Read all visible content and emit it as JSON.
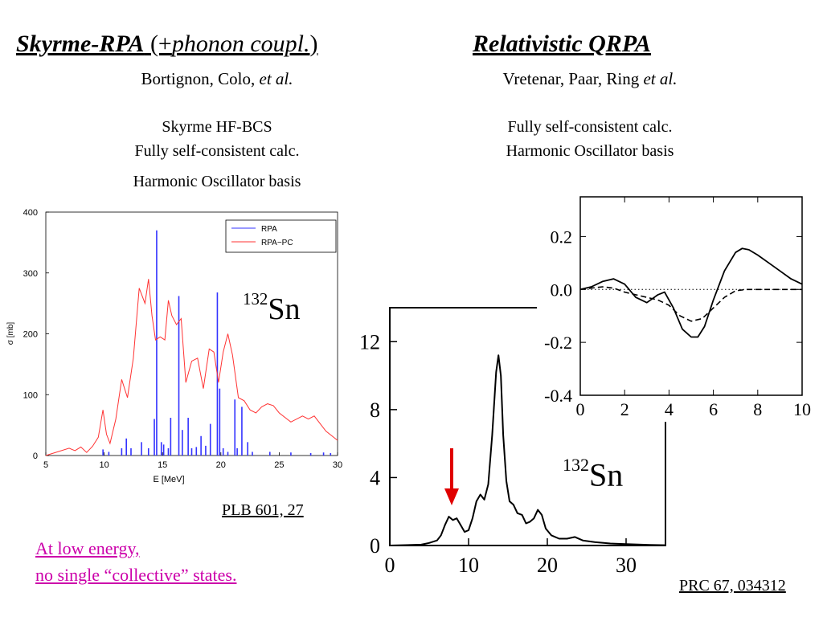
{
  "left": {
    "title_bold": "Skyrme-RPA",
    "title_paren_open": " (+",
    "title_italic": "phonon coupl.",
    "title_paren_close": ") ",
    "authors": "Bortignon, Colo, ",
    "authors_etal": "et al.",
    "desc": [
      "Skyrme HF-BCS",
      "Fully self-consistent calc.",
      "Harmonic Oscillator basis"
    ],
    "nucleus_mass": "132",
    "nucleus_symbol": "Sn",
    "reference": "PLB 601, 27 "
  },
  "right": {
    "title": "Relativistic QRPA",
    "authors": "Vretenar, Paar, Ring ",
    "authors_etal": "et al.",
    "desc": [
      "Fully self-consistent calc.",
      "Harmonic Oscillator basis"
    ],
    "nucleus_mass": "132",
    "nucleus_symbol": "Sn",
    "reference": "PRC 67, 034312"
  },
  "note": [
    "At low energy, ",
    "no single “collective” states."
  ],
  "colors": {
    "rpa": "#3333ff",
    "rpa_pc": "#ff3333",
    "note": "#cc00aa",
    "arrow": "#e00000"
  },
  "chart_data": [
    {
      "type": "line",
      "xlabel": "E [MeV]",
      "ylabel": "σ [mb]",
      "xlim": [
        5,
        30
      ],
      "ylim": [
        0,
        400
      ],
      "xticks": [
        5,
        10,
        15,
        20,
        25,
        30
      ],
      "yticks": [
        0,
        100,
        200,
        300,
        400
      ],
      "legend_position": "top-right",
      "series": [
        {
          "name": "RPA",
          "style": "sticks",
          "x": [
            9.9,
            10.4,
            11.5,
            11.9,
            12.3,
            13.2,
            13.8,
            14.3,
            14.5,
            14.9,
            15.1,
            15.5,
            15.7,
            16.4,
            16.7,
            17.2,
            17.5,
            17.9,
            18.3,
            18.7,
            19.1,
            19.7,
            19.9,
            20.2,
            20.6,
            21.2,
            21.4,
            21.8,
            22.3,
            22.7,
            24.2,
            26.0,
            27.7,
            28.8,
            29.4
          ],
          "y": [
            10,
            6,
            12,
            28,
            12,
            22,
            12,
            60,
            370,
            22,
            18,
            12,
            62,
            262,
            42,
            62,
            12,
            14,
            32,
            16,
            52,
            268,
            110,
            12,
            6,
            92,
            12,
            80,
            22,
            6,
            6,
            5,
            4,
            5,
            4
          ]
        },
        {
          "name": "RPA−PC",
          "style": "line",
          "x": [
            5,
            7,
            7.5,
            8,
            8.5,
            9,
            9.5,
            9.9,
            10.2,
            10.5,
            11,
            11.5,
            12,
            12.5,
            13,
            13.5,
            13.8,
            14.1,
            14.4,
            14.8,
            15.2,
            15.5,
            15.8,
            16.2,
            16.6,
            17,
            17.5,
            18,
            18.5,
            19,
            19.4,
            19.8,
            20.2,
            20.6,
            21,
            21.5,
            22,
            22.5,
            23,
            23.5,
            24,
            24.5,
            25,
            26,
            27,
            27.5,
            28,
            29,
            30
          ],
          "y": [
            0,
            12,
            8,
            14,
            5,
            15,
            30,
            75,
            35,
            20,
            60,
            125,
            95,
            160,
            275,
            250,
            290,
            230,
            190,
            195,
            190,
            255,
            230,
            215,
            225,
            120,
            155,
            160,
            110,
            175,
            170,
            120,
            170,
            200,
            165,
            95,
            90,
            75,
            70,
            80,
            85,
            82,
            70,
            55,
            65,
            60,
            65,
            40,
            25
          ]
        }
      ]
    },
    {
      "type": "line",
      "xlim": [
        0,
        35
      ],
      "ylim": [
        0,
        14
      ],
      "xticks": [
        0,
        10,
        20,
        30
      ],
      "yticks": [
        0,
        4,
        8,
        12
      ],
      "annotation": "red arrow at ~8 MeV pygmy peak",
      "series": [
        {
          "x": [
            0,
            4,
            5,
            6,
            6.5,
            7,
            7.5,
            8,
            8.5,
            9,
            9.5,
            10,
            10.5,
            11,
            11.5,
            12,
            12.5,
            13,
            13.5,
            13.8,
            14.1,
            14.4,
            14.8,
            15.2,
            15.7,
            16.2,
            16.8,
            17.3,
            17.8,
            18.3,
            18.8,
            19.3,
            19.8,
            20.5,
            21.5,
            22.5,
            23.5,
            24.5,
            26,
            28,
            30,
            33,
            35
          ],
          "y": [
            0,
            0.05,
            0.15,
            0.3,
            0.6,
            1.2,
            1.7,
            1.5,
            1.6,
            1.2,
            0.8,
            0.9,
            1.6,
            2.6,
            3.0,
            2.7,
            3.6,
            6.5,
            10.2,
            11.2,
            10.0,
            6.5,
            3.8,
            2.6,
            2.4,
            1.9,
            1.8,
            1.3,
            1.4,
            1.6,
            2.1,
            1.8,
            1.0,
            0.6,
            0.4,
            0.4,
            0.5,
            0.3,
            0.2,
            0.12,
            0.08,
            0.04,
            0.02
          ]
        }
      ]
    },
    {
      "type": "line",
      "xlim": [
        0,
        10
      ],
      "ylim": [
        -0.4,
        0.35
      ],
      "xticks": [
        0,
        2,
        4,
        6,
        8,
        10
      ],
      "yticks": [
        -0.4,
        -0.2,
        0.0,
        0.2
      ],
      "series": [
        {
          "style": "solid",
          "x": [
            0,
            0.5,
            1,
            1.5,
            2,
            2.5,
            3,
            3.5,
            3.8,
            4.2,
            4.6,
            5.0,
            5.3,
            5.6,
            6.0,
            6.5,
            7.0,
            7.3,
            7.6,
            8.0,
            8.5,
            9.0,
            9.5,
            10
          ],
          "y": [
            0,
            0.01,
            0.03,
            0.04,
            0.02,
            -0.03,
            -0.05,
            -0.02,
            -0.01,
            -0.07,
            -0.15,
            -0.18,
            -0.18,
            -0.14,
            -0.04,
            0.07,
            0.14,
            0.155,
            0.15,
            0.13,
            0.1,
            0.07,
            0.04,
            0.02
          ]
        },
        {
          "style": "dashed",
          "x": [
            0,
            0.5,
            1,
            1.5,
            2,
            2.5,
            3,
            3.5,
            4,
            4.5,
            5,
            5.5,
            6,
            6.5,
            7,
            7.5,
            8,
            9,
            10
          ],
          "y": [
            0,
            0.005,
            0.01,
            0.005,
            -0.01,
            -0.02,
            -0.03,
            -0.04,
            -0.06,
            -0.1,
            -0.12,
            -0.11,
            -0.07,
            -0.03,
            -0.005,
            0,
            0,
            0,
            0
          ]
        },
        {
          "style": "dotted",
          "x": [
            0,
            10
          ],
          "y": [
            0,
            0
          ]
        }
      ]
    }
  ]
}
